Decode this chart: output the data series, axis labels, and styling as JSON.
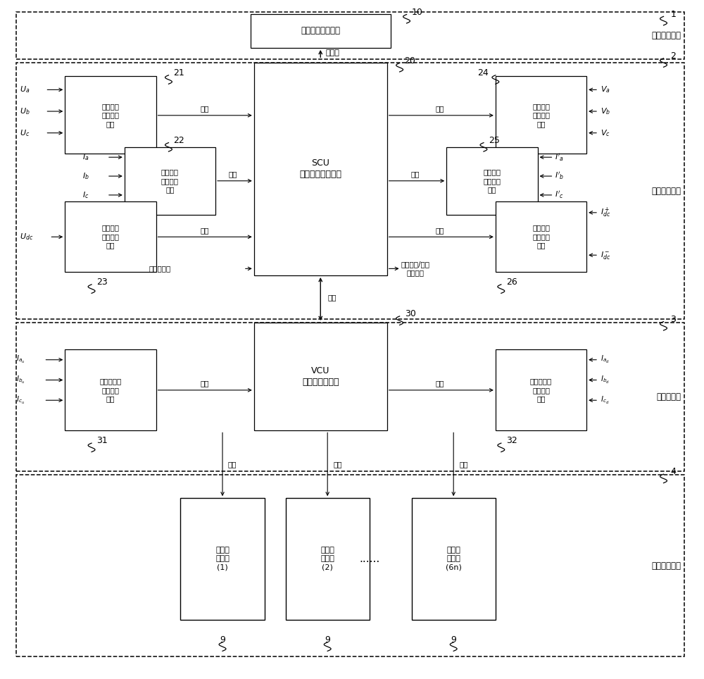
{
  "figsize": [
    10.0,
    9.64
  ],
  "dpi": 100,
  "bg_color": "#ffffff",
  "layer_labels": [
    "上位机控制层",
    "系统级控制层",
    "阀级控制层",
    "模块级控制层"
  ],
  "layer_nums": [
    "1",
    "2",
    "3",
    "4"
  ],
  "scu_text": "SCU\n（系统控制机箱）",
  "vcu_text": "VCU\n（阀控制机箱）",
  "monitor_text": "运行人员监控系统",
  "ethernet_text": "以太网",
  "optical_text": "光纤",
  "digital_in_text": "数字量输入",
  "switch_out_text": "开关控制/其他\n信号输出",
  "box21_text": "网侧电压\n信号采集\n单元",
  "box22_text": "网侧电流\n信号采集\n单元",
  "box23_text": "直流电压\n信号采集\n单元",
  "box24_text": "阀侧电压\n信号采集\n单元",
  "box25_text": "阀侧电流\n信号采集\n单元",
  "box26_text": "直流电流\n信号采集\n单元",
  "box31_text": "上桥臂电流\n信号采集\n单元",
  "box32_text": "下桥臂电流\n信号采集\n单元",
  "sub1_text": "子模块\n控制器\n(1)",
  "sub2_text": "子模块\n控制器\n(2)",
  "sub3_text": "子模块\n控制器\n(6n)",
  "dots_text": "......",
  "num10": "10",
  "num20": "20",
  "num21": "21",
  "num22": "22",
  "num23": "23",
  "num24": "24",
  "num25": "25",
  "num26": "26",
  "num30": "30",
  "num31": "31",
  "num32": "32",
  "num9": "9"
}
